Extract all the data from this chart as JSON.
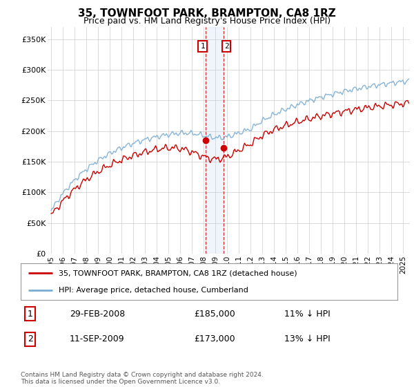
{
  "title": "35, TOWNFOOT PARK, BRAMPTON, CA8 1RZ",
  "subtitle": "Price paid vs. HM Land Registry's House Price Index (HPI)",
  "ylabel_ticks": [
    "£0",
    "£50K",
    "£100K",
    "£150K",
    "£200K",
    "£250K",
    "£300K",
    "£350K"
  ],
  "ytick_values": [
    0,
    50000,
    100000,
    150000,
    200000,
    250000,
    300000,
    350000
  ],
  "ylim": [
    0,
    370000
  ],
  "xlim_start": 1994.7,
  "xlim_end": 2025.6,
  "hpi_color": "#7aadd4",
  "price_color": "#cc0000",
  "sale1_date": 2008.17,
  "sale1_price": 185000,
  "sale2_date": 2009.7,
  "sale2_price": 173000,
  "highlight_x1": 2008.17,
  "highlight_x2": 2009.7,
  "legend_label1": "35, TOWNFOOT PARK, BRAMPTON, CA8 1RZ (detached house)",
  "legend_label2": "HPI: Average price, detached house, Cumberland",
  "table_row1_num": "1",
  "table_row1_date": "29-FEB-2008",
  "table_row1_price": "£185,000",
  "table_row1_hpi": "11% ↓ HPI",
  "table_row2_num": "2",
  "table_row2_date": "11-SEP-2009",
  "table_row2_price": "£173,000",
  "table_row2_hpi": "13% ↓ HPI",
  "footer": "Contains HM Land Registry data © Crown copyright and database right 2024.\nThis data is licensed under the Open Government Licence v3.0.",
  "background_color": "#ffffff",
  "grid_color": "#cccccc"
}
